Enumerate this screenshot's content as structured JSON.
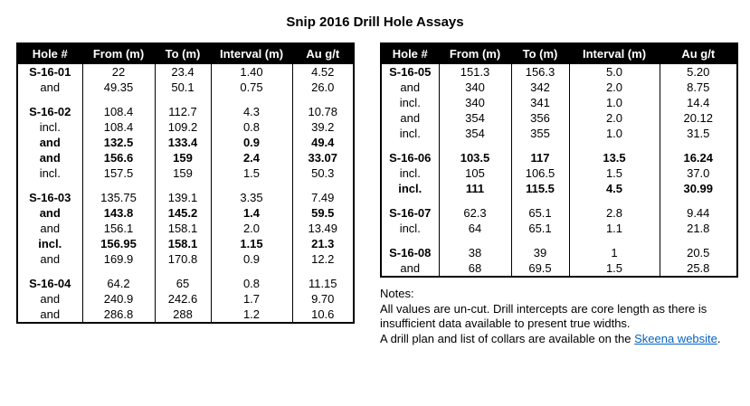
{
  "page": {
    "title": "Snip 2016 Drill Hole Assays"
  },
  "tables": {
    "left": {
      "headers": [
        "Hole #",
        "From (m)",
        "To (m)",
        "Interval (m)",
        "Au g/t"
      ],
      "rows": [
        {
          "hole": true,
          "bold": false,
          "cells": [
            "S-16-01",
            "22",
            "23.4",
            "1.40",
            "4.52"
          ]
        },
        {
          "hole": false,
          "bold": false,
          "cells": [
            "and",
            "49.35",
            "50.1",
            "0.75",
            "26.0"
          ]
        },
        {
          "spacer": true
        },
        {
          "hole": true,
          "bold": false,
          "cells": [
            "S-16-02",
            "108.4",
            "112.7",
            "4.3",
            "10.78"
          ]
        },
        {
          "hole": false,
          "bold": false,
          "cells": [
            "incl.",
            "108.4",
            "109.2",
            "0.8",
            "39.2"
          ]
        },
        {
          "hole": false,
          "bold": true,
          "cells": [
            "and",
            "132.5",
            "133.4",
            "0.9",
            "49.4"
          ]
        },
        {
          "hole": false,
          "bold": true,
          "cells": [
            "and",
            "156.6",
            "159",
            "2.4",
            "33.07"
          ]
        },
        {
          "hole": false,
          "bold": false,
          "cells": [
            "incl.",
            "157.5",
            "159",
            "1.5",
            "50.3"
          ]
        },
        {
          "spacer": true
        },
        {
          "hole": true,
          "bold": false,
          "cells": [
            "S-16-03",
            "135.75",
            "139.1",
            "3.35",
            "7.49"
          ]
        },
        {
          "hole": false,
          "bold": true,
          "cells": [
            "and",
            "143.8",
            "145.2",
            "1.4",
            "59.5"
          ]
        },
        {
          "hole": false,
          "bold": false,
          "cells": [
            "and",
            "156.1",
            "158.1",
            "2.0",
            "13.49"
          ]
        },
        {
          "hole": false,
          "bold": true,
          "cells": [
            "incl.",
            "156.95",
            "158.1",
            "1.15",
            "21.3"
          ]
        },
        {
          "hole": false,
          "bold": false,
          "cells": [
            "and",
            "169.9",
            "170.8",
            "0.9",
            "12.2"
          ]
        },
        {
          "spacer": true
        },
        {
          "hole": true,
          "bold": false,
          "cells": [
            "S-16-04",
            "64.2",
            "65",
            "0.8",
            "11.15"
          ]
        },
        {
          "hole": false,
          "bold": false,
          "cells": [
            "and",
            "240.9",
            "242.6",
            "1.7",
            "9.70"
          ]
        },
        {
          "hole": false,
          "bold": false,
          "cells": [
            "and",
            "286.8",
            "288",
            "1.2",
            "10.6"
          ]
        }
      ]
    },
    "right": {
      "headers": [
        "Hole #",
        "From (m)",
        "To (m)",
        "Interval (m)",
        "Au g/t"
      ],
      "rows": [
        {
          "hole": true,
          "bold": false,
          "cells": [
            "S-16-05",
            "151.3",
            "156.3",
            "5.0",
            "5.20"
          ]
        },
        {
          "hole": false,
          "bold": false,
          "cells": [
            "and",
            "340",
            "342",
            "2.0",
            "8.75"
          ]
        },
        {
          "hole": false,
          "bold": false,
          "cells": [
            "incl.",
            "340",
            "341",
            "1.0",
            "14.4"
          ]
        },
        {
          "hole": false,
          "bold": false,
          "cells": [
            "and",
            "354",
            "356",
            "2.0",
            "20.12"
          ]
        },
        {
          "hole": false,
          "bold": false,
          "cells": [
            "incl.",
            "354",
            "355",
            "1.0",
            "31.5"
          ]
        },
        {
          "spacer": true
        },
        {
          "hole": true,
          "bold": true,
          "cells": [
            "S-16-06",
            "103.5",
            "117",
            "13.5",
            "16.24"
          ]
        },
        {
          "hole": false,
          "bold": false,
          "cells": [
            "incl.",
            "105",
            "106.5",
            "1.5",
            "37.0"
          ]
        },
        {
          "hole": false,
          "bold": true,
          "cells": [
            "incl.",
            "111",
            "115.5",
            "4.5",
            "30.99"
          ]
        },
        {
          "spacer": true
        },
        {
          "hole": true,
          "bold": false,
          "cells": [
            "S-16-07",
            "62.3",
            "65.1",
            "2.8",
            "9.44"
          ]
        },
        {
          "hole": false,
          "bold": false,
          "cells": [
            "incl.",
            "64",
            "65.1",
            "1.1",
            "21.8"
          ]
        },
        {
          "spacer": true
        },
        {
          "hole": true,
          "bold": false,
          "cells": [
            "S-16-08",
            "38",
            "39",
            "1",
            "20.5"
          ]
        },
        {
          "hole": false,
          "bold": false,
          "cells": [
            "and",
            "68",
            "69.5",
            "1.5",
            "25.8"
          ]
        }
      ]
    }
  },
  "notes": {
    "label": "Notes:",
    "line1": "All values are un-cut. Drill intercepts are core length as there is",
    "line2": "insufficient data available to present true widths.",
    "line3_prefix": "A drill plan and list of collars are available on the ",
    "link_text": "Skeena website",
    "line3_suffix": "."
  },
  "colors": {
    "header_bg": "#000000",
    "header_text": "#ffffff",
    "link": "#0563C1"
  }
}
